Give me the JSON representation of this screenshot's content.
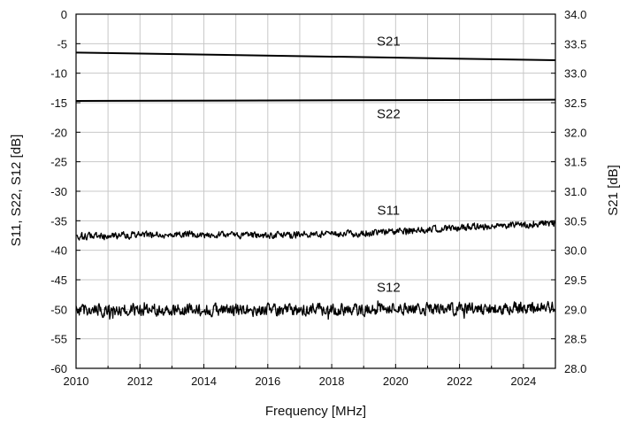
{
  "chart_data": {
    "type": "line",
    "xlabel": "Frequency [MHz]",
    "ylabel_left": "S11, S22, S12 [dB]",
    "ylabel_right": "S21 [dB]",
    "xlim": [
      2010,
      2025
    ],
    "ylim_left": [
      -60,
      0
    ],
    "ylim_right": [
      28.0,
      34.0
    ],
    "x_ticks": [
      2010,
      2012,
      2014,
      2016,
      2018,
      2020,
      2022,
      2024
    ],
    "y_ticks_left": [
      0,
      -5,
      -10,
      -15,
      -20,
      -25,
      -30,
      -35,
      -40,
      -45,
      -50,
      -55,
      -60
    ],
    "y_ticks_right": [
      "34.0",
      "33.5",
      "33.0",
      "32.5",
      "32.0",
      "31.5",
      "31.0",
      "30.5",
      "30.0",
      "29.5",
      "29.0",
      "28.5",
      "28.0"
    ],
    "grid": true,
    "series": [
      {
        "name": "S21",
        "axis": "right",
        "x": [
          2010,
          2025
        ],
        "values": [
          33.35,
          33.22
        ],
        "noise": 0.0
      },
      {
        "name": "S22",
        "axis": "left",
        "x": [
          2010,
          2025
        ],
        "values": [
          -14.7,
          -14.5
        ],
        "noise": 0.0
      },
      {
        "name": "S11",
        "axis": "left",
        "x": [
          2010,
          2013,
          2016,
          2019,
          2022,
          2025
        ],
        "values": [
          -37.6,
          -37.3,
          -37.5,
          -37.1,
          -36.2,
          -35.4
        ],
        "noise": 0.5
      },
      {
        "name": "S12",
        "axis": "left",
        "x": [
          2010,
          2013,
          2016,
          2019,
          2022,
          2025
        ],
        "values": [
          -50.2,
          -50.0,
          -50.1,
          -50.1,
          -49.9,
          -49.7
        ],
        "noise": 0.9
      }
    ]
  }
}
